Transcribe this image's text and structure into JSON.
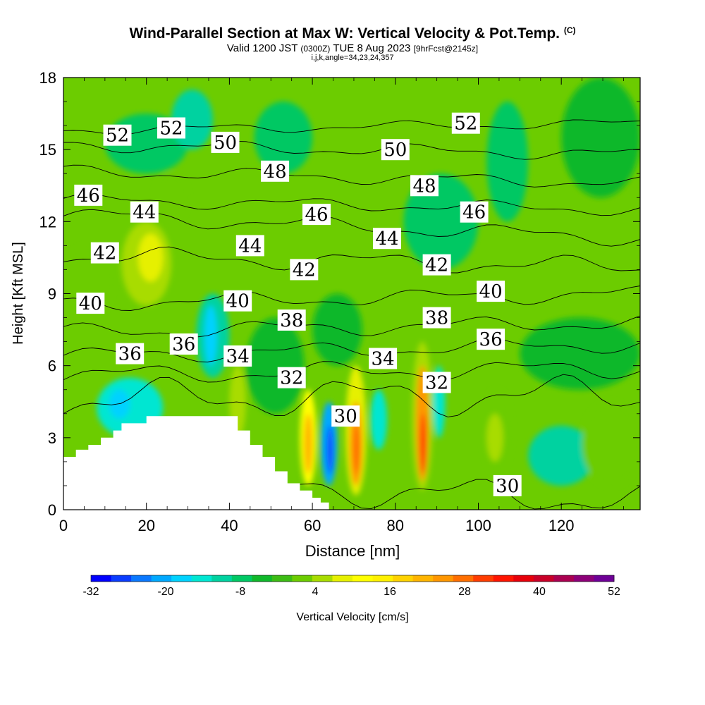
{
  "title_main": "Wind-Parallel Section at Max W: Vertical Velocity & Pot.Temp.",
  "title_mark": "(C)",
  "subtitle": {
    "valid_label": "Valid 1200 JST",
    "utc": "(0300Z)",
    "date": "TUE 8 Aug 2023",
    "forecast": "[9hrFcst@2145z]"
  },
  "index_line": "i,j,k,angle=34,23,24,357",
  "chart_data": {
    "type": "heatmap",
    "xlabel": "Distance [nm]",
    "ylabel": "Height [Kft MSL]",
    "xlim": [
      0,
      139
    ],
    "ylim": [
      0,
      18
    ],
    "x_ticks": [
      0,
      20,
      40,
      60,
      80,
      100,
      120
    ],
    "y_ticks": [
      0,
      3,
      6,
      9,
      12,
      15,
      18
    ],
    "colorbar": {
      "label": "Vertical Velocity [cm/s]",
      "tick_labels": [
        "-32",
        "-20",
        "-8",
        "4",
        "16",
        "28",
        "40",
        "52"
      ],
      "min": -32,
      "max": 52,
      "step": 4,
      "colors": [
        "#0000ff",
        "#0a3cff",
        "#0a78ff",
        "#00a8ff",
        "#00d2ff",
        "#00e6d2",
        "#00d2a0",
        "#00c864",
        "#10b82a",
        "#3cbc14",
        "#6ccc00",
        "#a8dc00",
        "#e6f000",
        "#ffff00",
        "#fff000",
        "#ffd200",
        "#ffb400",
        "#ff9600",
        "#ff6e00",
        "#ff3c00",
        "#ff1400",
        "#e6000a",
        "#c80028",
        "#aa0050",
        "#8c0078",
        "#6e0096"
      ]
    },
    "field_background": "#6ccc00",
    "cells": [
      {
        "x": [
          0,
          12
        ],
        "y": [
          8,
          11
        ],
        "v": 10
      },
      {
        "x": [
          14,
          26
        ],
        "y": [
          8.5,
          12
        ],
        "v": 14
      },
      {
        "x": [
          18,
          24
        ],
        "y": [
          9.5,
          11.5
        ],
        "v": 18
      },
      {
        "x": [
          22,
          30
        ],
        "y": [
          12,
          14
        ],
        "v": 8
      },
      {
        "x": [
          10,
          30
        ],
        "y": [
          14,
          16.5
        ],
        "v": -2
      },
      {
        "x": [
          26,
          36
        ],
        "y": [
          15,
          17.5
        ],
        "v": -8
      },
      {
        "x": [
          32,
          40
        ],
        "y": [
          5.5,
          9
        ],
        "v": -8
      },
      {
        "x": [
          34,
          37
        ],
        "y": [
          6,
          8.5
        ],
        "v": -16
      },
      {
        "x": [
          8,
          24
        ],
        "y": [
          3,
          5.5
        ],
        "v": -10
      },
      {
        "x": [
          11,
          16
        ],
        "y": [
          3.8,
          5
        ],
        "v": -16
      },
      {
        "x": [
          40,
          44
        ],
        "y": [
          3,
          6
        ],
        "v": 12
      },
      {
        "x": [
          44,
          58
        ],
        "y": [
          4,
          8
        ],
        "v": 0
      },
      {
        "x": [
          57,
          61
        ],
        "y": [
          1,
          5
        ],
        "v": 20
      },
      {
        "x": [
          58,
          60
        ],
        "y": [
          1.5,
          4
        ],
        "v": 32
      },
      {
        "x": [
          62,
          66
        ],
        "y": [
          1,
          4.5
        ],
        "v": -20
      },
      {
        "x": [
          63.5,
          65
        ],
        "y": [
          1.5,
          3.5
        ],
        "v": -28
      },
      {
        "x": [
          68,
          73
        ],
        "y": [
          0.6,
          6
        ],
        "v": 16
      },
      {
        "x": [
          69,
          72
        ],
        "y": [
          1,
          4.5
        ],
        "v": 36
      },
      {
        "x": [
          70,
          71.5
        ],
        "y": [
          1.5,
          3.5
        ],
        "v": 42
      },
      {
        "x": [
          74,
          78
        ],
        "y": [
          2.5,
          5
        ],
        "v": -12
      },
      {
        "x": [
          84,
          89
        ],
        "y": [
          0.8,
          7
        ],
        "v": 14
      },
      {
        "x": [
          85,
          88
        ],
        "y": [
          1.2,
          6
        ],
        "v": 36
      },
      {
        "x": [
          86,
          87.5
        ],
        "y": [
          1.5,
          4
        ],
        "v": 46
      },
      {
        "x": [
          89,
          92
        ],
        "y": [
          3,
          6
        ],
        "v": -10
      },
      {
        "x": [
          101,
          108
        ],
        "y": [
          1.5,
          5
        ],
        "v": 10
      },
      {
        "x": [
          102,
          106
        ],
        "y": [
          2,
          4
        ],
        "v": 14
      },
      {
        "x": [
          112,
          128
        ],
        "y": [
          1,
          3.5
        ],
        "v": -8
      },
      {
        "x": [
          125,
          139
        ],
        "y": [
          1,
          4.5
        ],
        "v": 8
      },
      {
        "x": [
          82,
          100
        ],
        "y": [
          10,
          14
        ],
        "v": -2
      },
      {
        "x": [
          102,
          112
        ],
        "y": [
          12,
          17
        ],
        "v": -4
      },
      {
        "x": [
          120,
          139
        ],
        "y": [
          13,
          18
        ],
        "v": 0
      },
      {
        "x": [
          46,
          60
        ],
        "y": [
          14,
          17
        ],
        "v": -2
      },
      {
        "x": [
          60,
          72
        ],
        "y": [
          6,
          9
        ],
        "v": 2
      },
      {
        "x": [
          110,
          139
        ],
        "y": [
          5,
          8
        ],
        "v": 0
      }
    ],
    "terrain_steps": [
      [
        0,
        2.2
      ],
      [
        3,
        2.5
      ],
      [
        6,
        2.7
      ],
      [
        9,
        3.0
      ],
      [
        12,
        3.3
      ],
      [
        14,
        3.6
      ],
      [
        17,
        3.6
      ],
      [
        20,
        3.9
      ],
      [
        39,
        3.9
      ],
      [
        42,
        3.3
      ],
      [
        45,
        2.7
      ],
      [
        48,
        2.2
      ],
      [
        51,
        1.6
      ],
      [
        54,
        1.1
      ],
      [
        57,
        0.8
      ],
      [
        60,
        0.5
      ],
      [
        62,
        0.3
      ],
      [
        64,
        0.0
      ]
    ],
    "isentropes": {
      "series": [
        {
          "name": "30",
          "y0": 1.2,
          "y1": 0.4,
          "amp": 0.5
        },
        {
          "name": "32",
          "y0": 4.6,
          "y1": 4.8,
          "amp": 0.6
        },
        {
          "name": "34",
          "y0": 5.6,
          "y1": 5.9,
          "amp": 0.3
        },
        {
          "name": "36",
          "y0": 6.4,
          "y1": 6.9,
          "amp": 0.25
        },
        {
          "name": "38",
          "y0": 7.4,
          "y1": 7.8,
          "amp": 0.25
        },
        {
          "name": "40",
          "y0": 8.6,
          "y1": 9.0,
          "amp": 0.25
        },
        {
          "name": "42",
          "y0": 10.6,
          "y1": 10.1,
          "amp": 0.3
        },
        {
          "name": "44",
          "y0": 12.3,
          "y1": 11.3,
          "amp": 0.25
        },
        {
          "name": "46",
          "y0": 12.9,
          "y1": 12.5,
          "amp": 0.2
        },
        {
          "name": "48",
          "y0": 14.1,
          "y1": 13.6,
          "amp": 0.2
        },
        {
          "name": "50",
          "y0": 15.2,
          "y1": 14.8,
          "amp": 0.2
        },
        {
          "name": "52",
          "y0": 15.8,
          "y1": 16.1,
          "amp": 0.15
        }
      ],
      "labels": [
        {
          "text": "52",
          "x": 13,
          "y": 15.6
        },
        {
          "text": "52",
          "x": 26,
          "y": 15.9
        },
        {
          "text": "50",
          "x": 39,
          "y": 15.3
        },
        {
          "text": "48",
          "x": 51,
          "y": 14.1
        },
        {
          "text": "46",
          "x": 6,
          "y": 13.1
        },
        {
          "text": "44",
          "x": 19.5,
          "y": 12.4
        },
        {
          "text": "46",
          "x": 61,
          "y": 12.3
        },
        {
          "text": "42",
          "x": 10,
          "y": 10.7
        },
        {
          "text": "44",
          "x": 45,
          "y": 11.0
        },
        {
          "text": "40",
          "x": 6.5,
          "y": 8.6
        },
        {
          "text": "42",
          "x": 58,
          "y": 10.0
        },
        {
          "text": "40",
          "x": 42,
          "y": 8.7
        },
        {
          "text": "38",
          "x": 55,
          "y": 7.9
        },
        {
          "text": "36",
          "x": 16,
          "y": 6.5
        },
        {
          "text": "36",
          "x": 29,
          "y": 6.9
        },
        {
          "text": "34",
          "x": 42,
          "y": 6.4
        },
        {
          "text": "32",
          "x": 55,
          "y": 5.5
        },
        {
          "text": "30",
          "x": 68,
          "y": 3.9
        },
        {
          "text": "50",
          "x": 80,
          "y": 15.0
        },
        {
          "text": "48",
          "x": 87,
          "y": 13.5
        },
        {
          "text": "44",
          "x": 78,
          "y": 11.3
        },
        {
          "text": "42",
          "x": 90,
          "y": 10.2
        },
        {
          "text": "38",
          "x": 90,
          "y": 8.0
        },
        {
          "text": "34",
          "x": 77,
          "y": 6.3
        },
        {
          "text": "32",
          "x": 90,
          "y": 5.3
        },
        {
          "text": "52",
          "x": 97,
          "y": 16.1
        },
        {
          "text": "46",
          "x": 99,
          "y": 12.4
        },
        {
          "text": "40",
          "x": 103,
          "y": 9.1
        },
        {
          "text": "36",
          "x": 103,
          "y": 7.1
        },
        {
          "text": "30",
          "x": 107,
          "y": 1.0
        }
      ]
    }
  }
}
